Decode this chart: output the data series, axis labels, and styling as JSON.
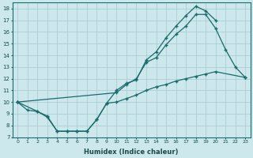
{
  "xlabel": "Humidex (Indice chaleur)",
  "bg_color": "#cce8ec",
  "grid_color": "#aacdd4",
  "line_color": "#1a6b6b",
  "xlim": [
    -0.5,
    23.5
  ],
  "ylim": [
    7,
    18.5
  ],
  "xticks": [
    0,
    1,
    2,
    3,
    4,
    5,
    6,
    7,
    8,
    9,
    10,
    11,
    12,
    13,
    14,
    15,
    16,
    17,
    18,
    19,
    20,
    21,
    22,
    23
  ],
  "yticks": [
    7,
    8,
    9,
    10,
    11,
    12,
    13,
    14,
    15,
    16,
    17,
    18
  ],
  "line1_x": [
    0,
    2,
    3,
    4,
    5,
    6,
    7,
    8,
    9,
    10,
    11,
    12,
    13,
    14,
    15,
    16,
    17,
    18,
    19,
    20
  ],
  "line1_y": [
    10,
    9.2,
    8.7,
    7.5,
    7.5,
    7.5,
    7.5,
    8.5,
    9.9,
    11.0,
    11.6,
    11.9,
    13.6,
    14.3,
    15.5,
    16.5,
    17.4,
    18.2,
    17.8,
    17.0
  ],
  "line2_x": [
    0,
    10,
    11,
    12,
    13,
    14,
    15,
    16,
    17,
    18,
    19,
    20,
    21,
    22,
    23
  ],
  "line2_y": [
    10,
    10.8,
    11.5,
    12.0,
    13.4,
    13.8,
    14.9,
    15.8,
    16.5,
    17.5,
    17.5,
    16.3,
    14.5,
    13.0,
    12.1
  ],
  "line3_x": [
    0,
    1,
    2,
    3,
    4,
    5,
    6,
    7,
    8,
    9,
    10,
    11,
    12,
    13,
    14,
    15,
    16,
    17,
    18,
    19,
    20,
    23
  ],
  "line3_y": [
    10,
    9.3,
    9.2,
    8.8,
    7.5,
    7.5,
    7.5,
    7.5,
    8.5,
    9.9,
    10.0,
    10.3,
    10.6,
    11.0,
    11.3,
    11.5,
    11.8,
    12.0,
    12.2,
    12.4,
    12.6,
    12.1
  ]
}
